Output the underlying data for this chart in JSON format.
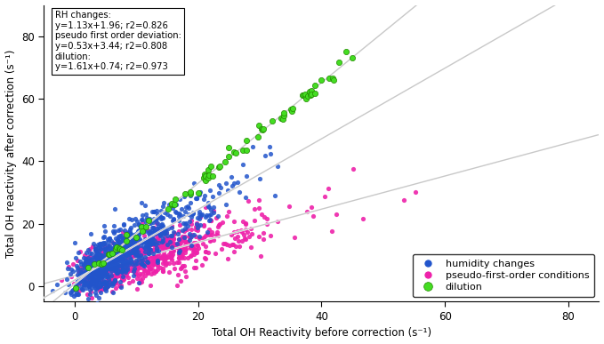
{
  "xlabel": "Total OH Reactivity before correction (s⁻¹)",
  "ylabel": "Total OH reactivity after correction (s⁻¹)",
  "xlim": [
    -5,
    85
  ],
  "ylim": [
    -5,
    90
  ],
  "xticks": [
    0,
    20,
    40,
    60,
    80
  ],
  "yticks": [
    0,
    20,
    40,
    60,
    80
  ],
  "blue_color": "#2255cc",
  "magenta_color": "#ee22aa",
  "green_color": "#44dd22",
  "regression_line_color": "#c8c8c8",
  "annotation_text": "RH changes:\ny=1.13x+1.96; r2=0.826\npseudo first order deviation:\ny=0.53x+3.44; r2=0.808\ndilution:\ny=1.61x+0.74; r2=0.973",
  "blue_slope": 1.13,
  "blue_intercept": 1.96,
  "magenta_slope": 0.53,
  "magenta_intercept": 3.44,
  "green_slope": 1.61,
  "green_intercept": 0.74,
  "legend_labels": [
    "humidity changes",
    "pseudo-first-order conditions",
    "dilution"
  ],
  "background_color": "#ffffff",
  "seed": 42
}
